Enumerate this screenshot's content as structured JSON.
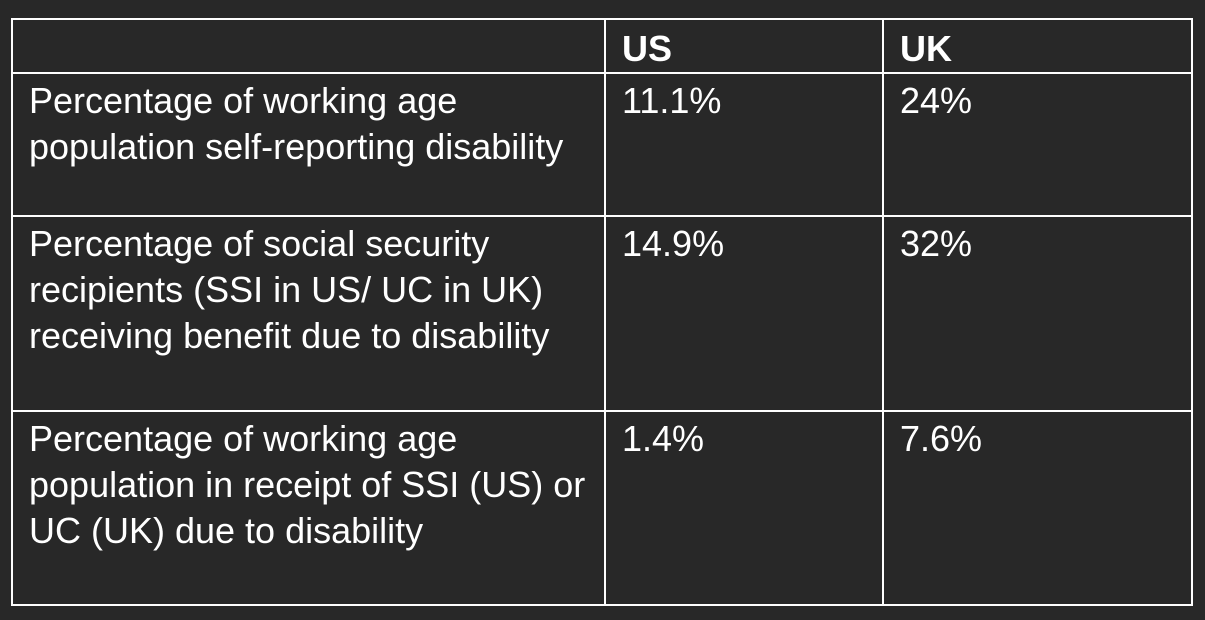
{
  "table": {
    "columns": [
      "",
      "US",
      "UK"
    ],
    "rows": [
      {
        "label": "Percentage of working age population self-reporting disability",
        "us": "11.1%",
        "uk": "24%"
      },
      {
        "label": "Percentage of social security recipients (SSI in US/ UC in UK) receiving benefit due to disability",
        "us": "14.9%",
        "uk": "32%"
      },
      {
        "label": "Percentage of working age population in receipt of SSI (US) or UC (UK) due to disability",
        "us": "1.4%",
        "uk": "7.6%"
      }
    ]
  },
  "colors": {
    "background": "#282828",
    "text": "#ffffff",
    "border": "#ffffff"
  }
}
